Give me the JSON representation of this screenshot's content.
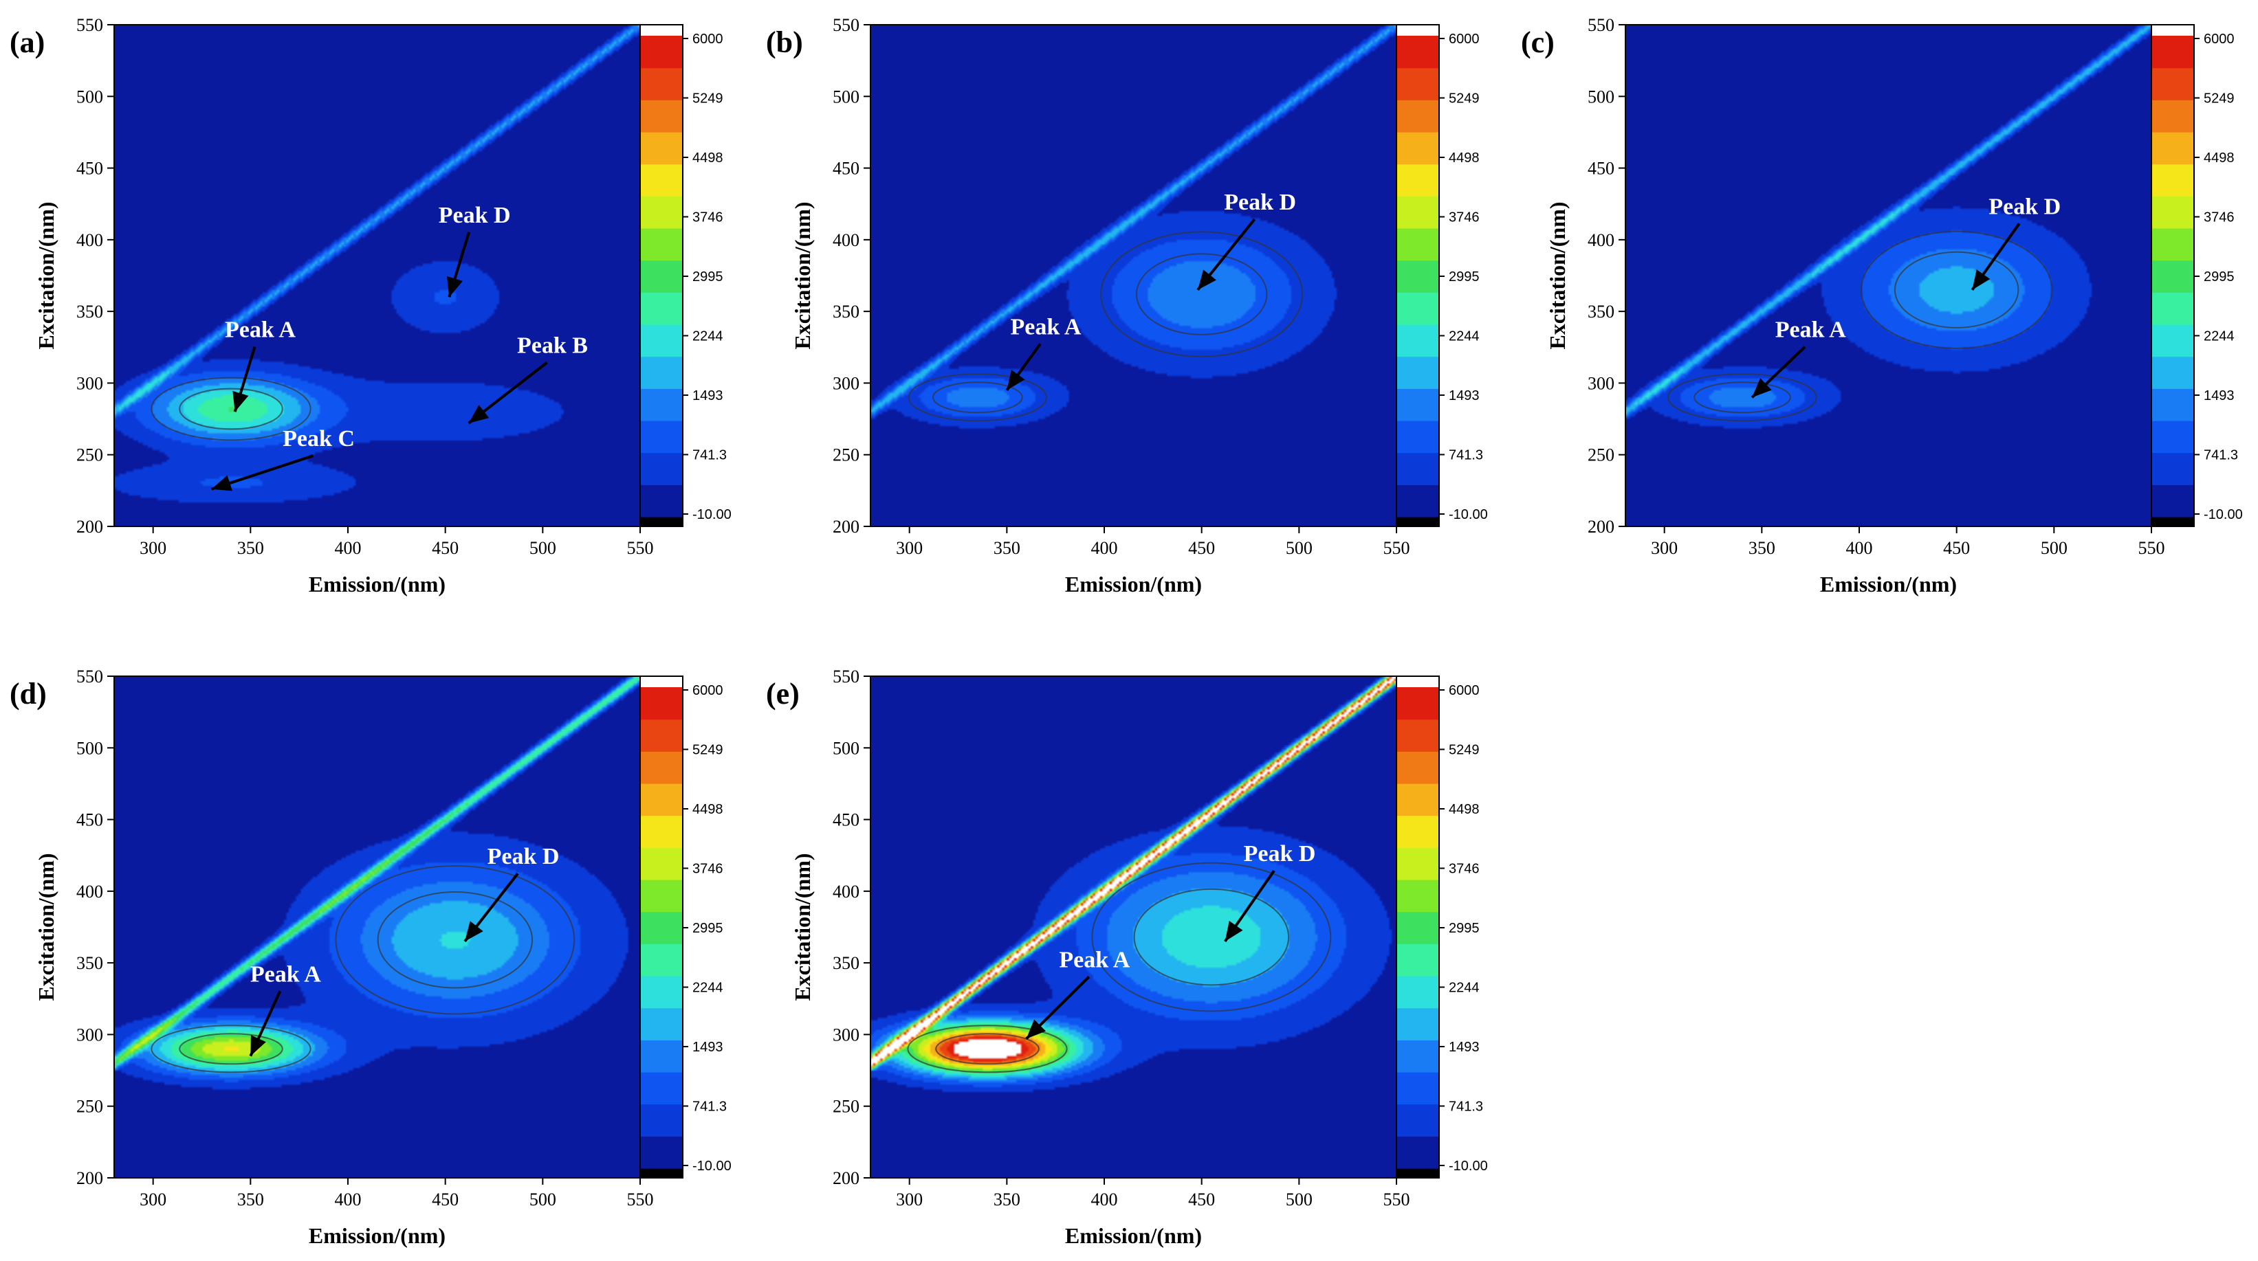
{
  "figure": {
    "description_free": true
  },
  "colors": {
    "background": "#1a4cf0",
    "colormap": [
      "#000000",
      "#0a1a9e",
      "#0a3ad8",
      "#0f55f2",
      "#1a7cf5",
      "#22b5f0",
      "#2ee0dc",
      "#38f0a0",
      "#3ee060",
      "#7ee82a",
      "#c8f01e",
      "#f5e61a",
      "#f5b01a",
      "#f07a16",
      "#e84512",
      "#e01e10",
      "#ffffff"
    ]
  },
  "chart_data": [
    {
      "type": "heatmap",
      "panel": "(a)",
      "xlabel": "Emission/(nm)",
      "ylabel": "Excitation/(nm)",
      "xlim": [
        280,
        550
      ],
      "ylim": [
        200,
        550
      ],
      "x_ticks": [
        "300",
        "350",
        "400",
        "450",
        "500",
        "550"
      ],
      "y_ticks": [
        "200",
        "250",
        "300",
        "350",
        "400",
        "450",
        "500",
        "550"
      ],
      "colorbar_ticks": [
        "6000",
        "5249",
        "4498",
        "3746",
        "2995",
        "2244",
        "1493",
        "741.3",
        "-10.00"
      ],
      "scatter_intensity": 1493,
      "peaks": [
        {
          "name": "Peak A",
          "em": 340,
          "ex": 282,
          "intensity": 2600,
          "sx": 30,
          "sy": 16
        },
        {
          "name": "Peak C",
          "em": 340,
          "ex": 230,
          "intensity": 700,
          "sx": 45,
          "sy": 10
        },
        {
          "name": "Peak B",
          "em": 450,
          "ex": 280,
          "intensity": 450,
          "sx": 60,
          "sy": 20
        },
        {
          "name": "Peak D",
          "em": 450,
          "ex": 360,
          "intensity": 700,
          "sx": 20,
          "sy": 18
        }
      ],
      "labels": [
        {
          "text": "Peak A",
          "em": 355,
          "ex": 332,
          "arrow_to": [
            342,
            280
          ]
        },
        {
          "text": "Peak D",
          "em": 465,
          "ex": 412,
          "arrow_to": [
            452,
            360
          ]
        },
        {
          "text": "Peak B",
          "em": 505,
          "ex": 321,
          "arrow_to": [
            462,
            272
          ]
        },
        {
          "text": "Peak C",
          "em": 385,
          "ex": 256,
          "arrow_to": [
            330,
            226
          ]
        }
      ]
    },
    {
      "type": "heatmap",
      "panel": "(b)",
      "xlabel": "Emission/(nm)",
      "ylabel": "Excitation/(nm)",
      "xlim": [
        280,
        550
      ],
      "ylim": [
        200,
        550
      ],
      "x_ticks": [
        "300",
        "350",
        "400",
        "450",
        "500",
        "550"
      ],
      "y_ticks": [
        "200",
        "250",
        "300",
        "350",
        "400",
        "450",
        "500",
        "550"
      ],
      "colorbar_ticks": [
        "6000",
        "5249",
        "4498",
        "3746",
        "2995",
        "2244",
        "1493",
        "741.3",
        "-10.00"
      ],
      "scatter_intensity": 1493,
      "peaks": [
        {
          "name": "Peak A",
          "em": 335,
          "ex": 290,
          "intensity": 1300,
          "sx": 26,
          "sy": 12
        },
        {
          "name": "Peak D",
          "em": 450,
          "ex": 362,
          "intensity": 1400,
          "sx": 38,
          "sy": 32
        }
      ],
      "labels": [
        {
          "text": "Peak A",
          "em": 370,
          "ex": 334,
          "arrow_to": [
            350,
            295
          ]
        },
        {
          "text": "Peak D",
          "em": 480,
          "ex": 421,
          "arrow_to": [
            448,
            365
          ]
        }
      ]
    },
    {
      "type": "heatmap",
      "panel": "(c)",
      "xlabel": "Emission/(nm)",
      "ylabel": "Excitation/(nm)",
      "xlim": [
        280,
        550
      ],
      "ylim": [
        200,
        550
      ],
      "x_ticks": [
        "300",
        "350",
        "400",
        "450",
        "500",
        "550"
      ],
      "y_ticks": [
        "200",
        "250",
        "300",
        "350",
        "400",
        "450",
        "500",
        "550"
      ],
      "colorbar_ticks": [
        "6000",
        "5249",
        "4498",
        "3746",
        "2995",
        "2244",
        "1493",
        "741.3",
        "-10.00"
      ],
      "scatter_intensity": 1700,
      "peaks": [
        {
          "name": "Peak A",
          "em": 340,
          "ex": 290,
          "intensity": 1300,
          "sx": 28,
          "sy": 12
        },
        {
          "name": "Peak D",
          "em": 450,
          "ex": 365,
          "intensity": 1700,
          "sx": 36,
          "sy": 30
        }
      ],
      "labels": [
        {
          "text": "Peak A",
          "em": 375,
          "ex": 332,
          "arrow_to": [
            345,
            290
          ]
        },
        {
          "text": "Peak D",
          "em": 485,
          "ex": 418,
          "arrow_to": [
            458,
            365
          ]
        }
      ]
    },
    {
      "type": "heatmap",
      "panel": "(d)",
      "xlabel": "Emission/(nm)",
      "ylabel": "Excitation/(nm)",
      "xlim": [
        280,
        550
      ],
      "ylim": [
        200,
        550
      ],
      "x_ticks": [
        "300",
        "350",
        "400",
        "450",
        "500",
        "550"
      ],
      "y_ticks": [
        "200",
        "250",
        "300",
        "350",
        "400",
        "450",
        "500",
        "550"
      ],
      "colorbar_ticks": [
        "6000",
        "5249",
        "4498",
        "3746",
        "2995",
        "2244",
        "1493",
        "741.3",
        "-10.00"
      ],
      "scatter_intensity": 2600,
      "peaks": [
        {
          "name": "Peak A",
          "em": 340,
          "ex": 290,
          "intensity": 3900,
          "sx": 30,
          "sy": 12
        },
        {
          "name": "Peak D",
          "em": 455,
          "ex": 366,
          "intensity": 1900,
          "sx": 45,
          "sy": 38
        }
      ],
      "labels": [
        {
          "text": "Peak A",
          "em": 368,
          "ex": 337,
          "arrow_to": [
            350,
            285
          ]
        },
        {
          "text": "Peak D",
          "em": 490,
          "ex": 419,
          "arrow_to": [
            460,
            365
          ]
        }
      ]
    },
    {
      "type": "heatmap",
      "panel": "(e)",
      "xlabel": "Emission/(nm)",
      "ylabel": "Excitation/(nm)",
      "xlim": [
        280,
        550
      ],
      "ylim": [
        200,
        550
      ],
      "x_ticks": [
        "300",
        "350",
        "400",
        "450",
        "500",
        "550"
      ],
      "y_ticks": [
        "200",
        "250",
        "300",
        "350",
        "400",
        "450",
        "500",
        "550"
      ],
      "colorbar_ticks": [
        "6000",
        "5249",
        "4498",
        "3746",
        "2995",
        "2244",
        "1493",
        "741.3",
        "-10.00"
      ],
      "scatter_intensity": 6500,
      "peaks": [
        {
          "name": "Peak A",
          "em": 340,
          "ex": 290,
          "intensity": 7000,
          "sx": 30,
          "sy": 12
        },
        {
          "name": "Peak D",
          "em": 455,
          "ex": 368,
          "intensity": 2200,
          "sx": 45,
          "sy": 38
        }
      ],
      "labels": [
        {
          "text": "Peak A",
          "em": 395,
          "ex": 347,
          "arrow_to": [
            360,
            297
          ]
        },
        {
          "text": "Peak D",
          "em": 490,
          "ex": 421,
          "arrow_to": [
            462,
            365
          ]
        }
      ]
    }
  ]
}
